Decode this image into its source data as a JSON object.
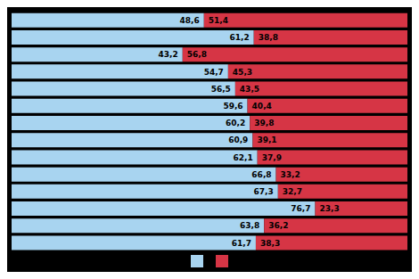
{
  "chart_data": {
    "type": "bar",
    "orientation": "horizontal",
    "stacked": true,
    "data_labels": true,
    "tick_labels": false,
    "legend": "bottom",
    "categories": [
      null,
      null,
      null,
      null,
      null,
      null,
      null,
      null,
      null,
      null,
      null,
      null,
      null,
      null
    ],
    "xlim": [
      0,
      100
    ],
    "series": [
      {
        "color": "#a8d4f0",
        "values": [
          48.6,
          61.2,
          43.2,
          54.7,
          56.5,
          59.6,
          60.2,
          60.9,
          62.1,
          66.8,
          67.3,
          76.7,
          63.8,
          61.7
        ],
        "value_labels": [
          "48,6",
          "61,2",
          "43,2",
          "54,7",
          "56,5",
          "59,6",
          "60,2",
          "60,9",
          "62,1",
          "66,8",
          "67,3",
          "76,7",
          "63,8",
          "61,7"
        ]
      },
      {
        "color": "#d63545",
        "values": [
          51.4,
          38.8,
          56.8,
          45.3,
          43.5,
          40.4,
          39.8,
          39.1,
          37.9,
          33.2,
          32.7,
          23.3,
          36.2,
          38.3
        ],
        "value_labels": [
          "51,4",
          "38,8",
          "56,8",
          "45,3",
          "43,5",
          "40,4",
          "39,8",
          "39,1",
          "37,9",
          "33,2",
          "32,7",
          "23,3",
          "36,2",
          "38,3"
        ]
      }
    ]
  }
}
